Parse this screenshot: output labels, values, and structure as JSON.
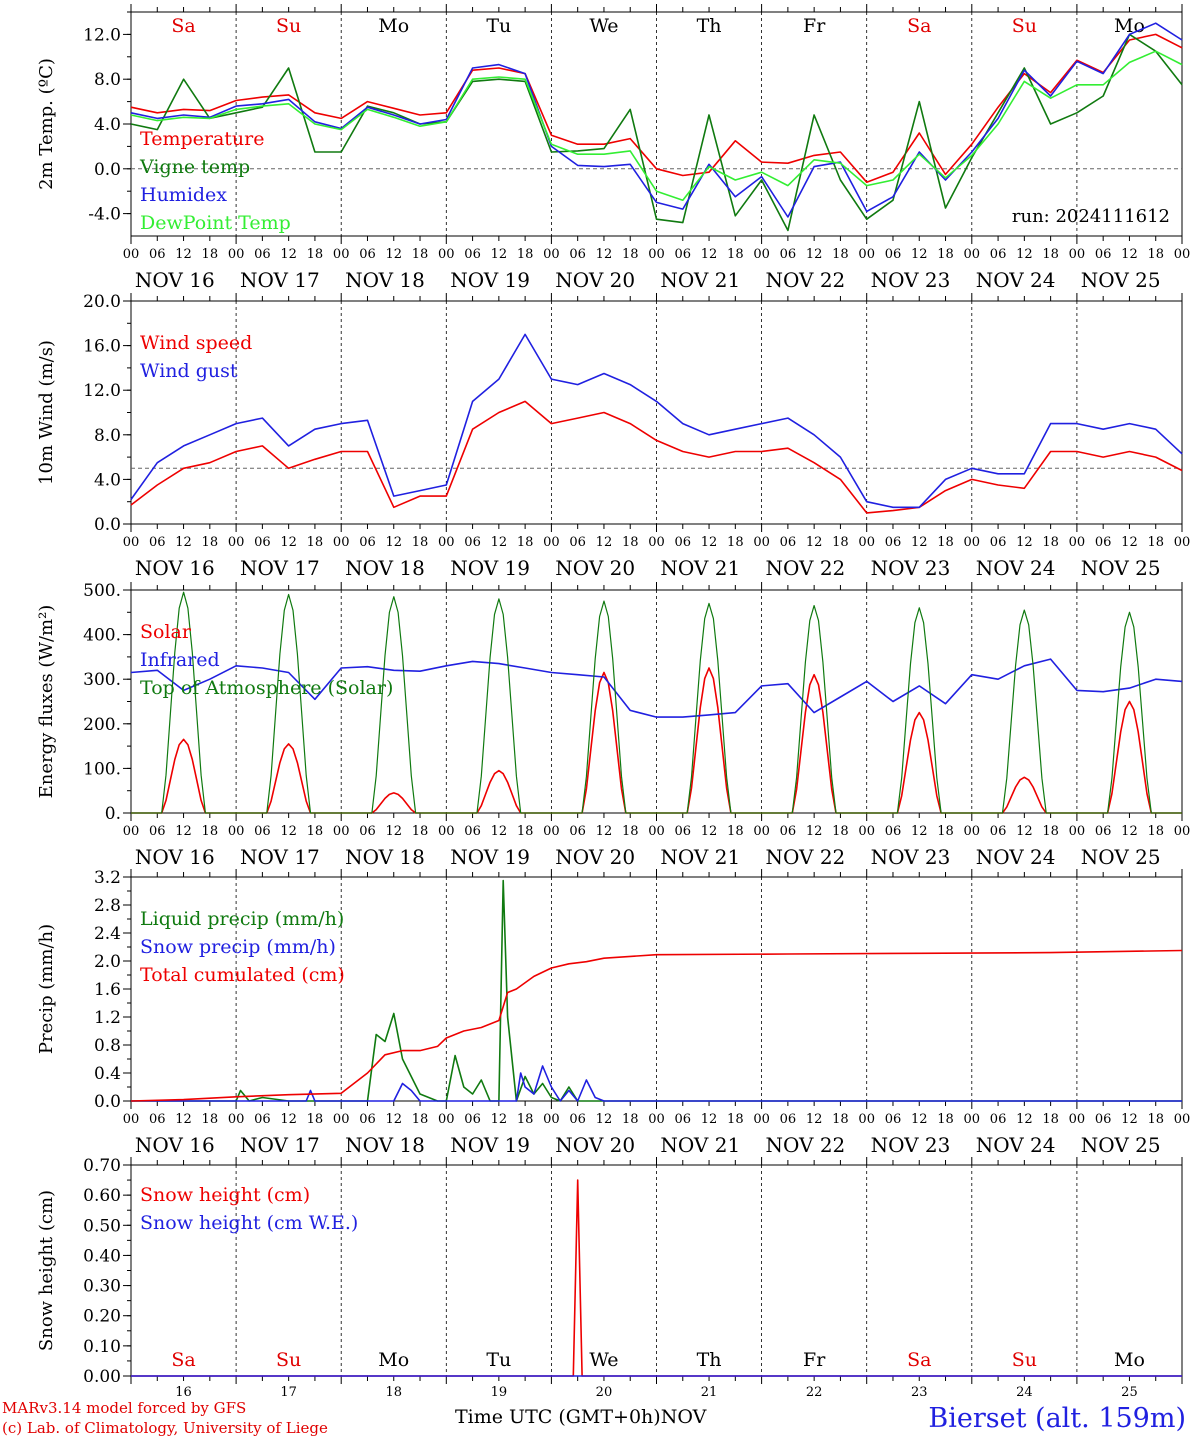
{
  "chart_data": [
    {
      "type": "line",
      "ylabel": "2m Temp. (ºC)",
      "ylim": [
        -6,
        14
      ],
      "yticks": [
        -4,
        0,
        4,
        8,
        12
      ],
      "ytick_labels": [
        "-4.0",
        "0.0",
        "4.0",
        "8.0",
        "12.0"
      ],
      "ref_line": 0,
      "annotation": "run: 2024111612",
      "x_unit": "hours from NOV 16 00 UTC",
      "weekday_labels": [
        "Sa",
        "Su",
        "Mo",
        "Tu",
        "We",
        "Th",
        "Fr",
        "Sa",
        "Su",
        "Mo"
      ],
      "weekday_colors": [
        "#e00000",
        "#e00000",
        "#000000",
        "#000000",
        "#000000",
        "#000000",
        "#000000",
        "#e00000",
        "#e00000",
        "#000000"
      ],
      "series": [
        {
          "name": "Temperature",
          "color": "#ee0000",
          "x": [
            0,
            6,
            12,
            18,
            24,
            30,
            36,
            42,
            48,
            54,
            60,
            66,
            72,
            78,
            84,
            90,
            96,
            102,
            108,
            114,
            120,
            126,
            132,
            138,
            144,
            150,
            156,
            162,
            168,
            174,
            180,
            186,
            192,
            198,
            204,
            210,
            216,
            222,
            228,
            234,
            240
          ],
          "values": [
            5.5,
            5,
            5.3,
            5.2,
            6.1,
            6.4,
            6.6,
            5,
            4.5,
            6,
            5.4,
            4.8,
            5,
            8.8,
            9,
            8.5,
            3,
            2.2,
            2.2,
            2.7,
            0,
            -0.6,
            -0.3,
            2.5,
            0.6,
            0.5,
            1.2,
            1.5,
            -1.2,
            -0.3,
            3.2,
            -0.5,
            2.2,
            5.5,
            8.5,
            6.8,
            9.7,
            8.6,
            11.5,
            12,
            10.8
          ]
        },
        {
          "name": "Vigne temp",
          "color": "#107a10",
          "x": [
            0,
            6,
            12,
            18,
            24,
            30,
            36,
            42,
            48,
            54,
            60,
            66,
            72,
            78,
            84,
            90,
            96,
            102,
            108,
            114,
            120,
            126,
            132,
            138,
            144,
            150,
            156,
            162,
            168,
            174,
            180,
            186,
            192,
            198,
            204,
            210,
            216,
            222,
            228,
            234,
            240
          ],
          "values": [
            4,
            3.5,
            8,
            4.5,
            5,
            5.5,
            9,
            1.5,
            1.5,
            5.6,
            5,
            4,
            4.2,
            7.8,
            8,
            7.8,
            1.5,
            1.6,
            1.8,
            5.3,
            -4.5,
            -4.8,
            4.8,
            -4.2,
            -1,
            -5.5,
            4.8,
            -1,
            -4.5,
            -2.8,
            6,
            -3.5,
            1,
            5,
            9,
            4,
            5,
            6.5,
            12,
            10.5,
            7.5
          ]
        },
        {
          "name": "Humidex",
          "color": "#2020e0",
          "x": [
            0,
            6,
            12,
            18,
            24,
            30,
            36,
            42,
            48,
            54,
            60,
            66,
            72,
            78,
            84,
            90,
            96,
            102,
            108,
            114,
            120,
            126,
            132,
            138,
            144,
            150,
            156,
            162,
            168,
            174,
            180,
            186,
            192,
            198,
            204,
            210,
            216,
            222,
            228,
            234,
            240
          ],
          "values": [
            5,
            4.5,
            4.8,
            4.6,
            5.6,
            5.8,
            6.2,
            4.2,
            3.6,
            5.5,
            4.8,
            4,
            4.4,
            9,
            9.3,
            8.5,
            2,
            0.3,
            0.2,
            0.4,
            -3,
            -3.6,
            0.4,
            -2.5,
            -0.7,
            -4.3,
            0.2,
            0.6,
            -3.8,
            -2.5,
            1.5,
            -1,
            1.5,
            4.5,
            8.8,
            6.5,
            9.6,
            8.5,
            12,
            13,
            11.5
          ]
        },
        {
          "name": "DewPoint Temp",
          "color": "#33ee33",
          "x": [
            0,
            6,
            12,
            18,
            24,
            30,
            36,
            42,
            48,
            54,
            60,
            66,
            72,
            78,
            84,
            90,
            96,
            102,
            108,
            114,
            120,
            126,
            132,
            138,
            144,
            150,
            156,
            162,
            168,
            174,
            180,
            186,
            192,
            198,
            204,
            210,
            216,
            222,
            228,
            234,
            240
          ],
          "values": [
            4.8,
            4.3,
            4.6,
            4.5,
            5.3,
            5.6,
            5.8,
            4,
            3.5,
            5.3,
            4.6,
            3.8,
            4.2,
            8,
            8.2,
            8,
            2.2,
            1.3,
            1.3,
            1.6,
            -2,
            -2.8,
            0.2,
            -1,
            -0.3,
            -1.5,
            0.8,
            0.5,
            -1.5,
            -1,
            1.3,
            -0.8,
            1.2,
            4,
            7.8,
            6.3,
            7.5,
            7.5,
            9.5,
            10.5,
            9.3
          ]
        }
      ]
    },
    {
      "type": "line",
      "ylabel": "10m Wind (m/s)",
      "ylim": [
        0,
        20
      ],
      "yticks": [
        0,
        4,
        8,
        12,
        16,
        20
      ],
      "ytick_labels": [
        "0.0",
        "4.0",
        "8.0",
        "12.0",
        "16.0",
        "20.0"
      ],
      "ref_line": 5,
      "series": [
        {
          "name": "Wind speed",
          "color": "#ee0000",
          "x": [
            0,
            6,
            12,
            18,
            24,
            30,
            36,
            42,
            48,
            54,
            60,
            66,
            72,
            78,
            84,
            90,
            96,
            102,
            108,
            114,
            120,
            126,
            132,
            138,
            144,
            150,
            156,
            162,
            168,
            174,
            180,
            186,
            192,
            198,
            204,
            210,
            216,
            222,
            228,
            234,
            240
          ],
          "values": [
            1.7,
            3.5,
            5,
            5.5,
            6.5,
            7,
            5,
            5.8,
            6.5,
            6.5,
            1.5,
            2.5,
            2.5,
            8.5,
            10,
            11,
            9,
            9.5,
            10,
            9,
            7.5,
            6.5,
            6,
            6.5,
            6.5,
            6.8,
            5.5,
            4,
            1,
            1.2,
            1.5,
            3,
            4,
            3.5,
            3.2,
            6.5,
            6.5,
            6,
            6.5,
            6,
            4.8
          ]
        },
        {
          "name": "Wind gust",
          "color": "#2020e0",
          "x": [
            0,
            6,
            12,
            18,
            24,
            30,
            36,
            42,
            48,
            54,
            60,
            66,
            72,
            78,
            84,
            90,
            96,
            102,
            108,
            114,
            120,
            126,
            132,
            138,
            144,
            150,
            156,
            162,
            168,
            174,
            180,
            186,
            192,
            198,
            204,
            210,
            216,
            222,
            228,
            234,
            240
          ],
          "values": [
            2.2,
            5.5,
            7,
            8,
            9,
            9.5,
            7,
            8.5,
            9,
            9.3,
            2.5,
            3,
            3.5,
            11,
            13,
            17,
            13,
            12.5,
            13.5,
            12.5,
            11,
            9,
            8,
            8.5,
            9,
            9.5,
            8,
            6,
            2,
            1.5,
            1.5,
            4,
            5,
            4.5,
            4.5,
            9,
            9,
            8.5,
            9,
            8.5,
            6.3
          ]
        }
      ]
    },
    {
      "type": "line",
      "ylabel": "Energy fluxes (W/m²)",
      "ylim": [
        0,
        500
      ],
      "yticks": [
        0,
        100,
        200,
        300,
        400,
        500
      ],
      "ytick_labels": [
        "0.",
        "100.",
        "200.",
        "300.",
        "400.",
        "500."
      ],
      "series": [
        {
          "name": "Solar",
          "color": "#ee0000",
          "peaks": [
            165,
            155,
            45,
            95,
            315,
            325,
            310,
            225,
            80,
            250
          ]
        },
        {
          "name": "Infrared",
          "color": "#2020e0",
          "x": [
            0,
            6,
            12,
            18,
            24,
            30,
            36,
            42,
            48,
            54,
            60,
            66,
            72,
            78,
            84,
            90,
            96,
            102,
            108,
            114,
            120,
            126,
            132,
            138,
            144,
            150,
            156,
            162,
            168,
            174,
            180,
            186,
            192,
            198,
            204,
            210,
            216,
            222,
            228,
            234,
            240
          ],
          "values": [
            315,
            320,
            275,
            300,
            330,
            325,
            315,
            255,
            325,
            328,
            320,
            318,
            330,
            340,
            335,
            325,
            315,
            310,
            305,
            230,
            215,
            215,
            220,
            225,
            285,
            290,
            225,
            260,
            295,
            250,
            285,
            245,
            310,
            300,
            330,
            345,
            275,
            272,
            280,
            300,
            295
          ]
        },
        {
          "name": "Top of Atmosphere (Solar)",
          "color": "#107a10",
          "peaks": [
            495,
            490,
            485,
            480,
            475,
            470,
            465,
            460,
            455,
            450
          ]
        }
      ]
    },
    {
      "type": "line",
      "ylabel": "Precip (mm/h)",
      "ylim": [
        0,
        3.2
      ],
      "yticks": [
        0,
        0.4,
        0.8,
        1.2,
        1.6,
        2.0,
        2.4,
        2.8,
        3.2
      ],
      "ytick_labels": [
        "0.0",
        "0.4",
        "0.8",
        "1.2",
        "1.6",
        "2.0",
        "2.4",
        "2.8",
        "3.2"
      ],
      "series": [
        {
          "name": "Liquid precip (mm/h)",
          "color": "#107a10",
          "x": [
            0,
            24,
            25,
            27,
            30,
            36,
            48,
            54,
            56,
            58,
            60,
            62,
            66,
            70,
            72,
            74,
            76,
            78,
            80,
            82,
            84,
            85,
            86,
            88,
            90,
            92,
            94,
            96,
            98,
            100,
            102,
            104,
            240
          ],
          "values": [
            0,
            0,
            0.15,
            0,
            0.05,
            0,
            0,
            0,
            0.95,
            0.85,
            1.25,
            0.6,
            0.1,
            0,
            0,
            0.65,
            0.2,
            0.1,
            0.3,
            0,
            0,
            3.15,
            1.2,
            0,
            0.35,
            0.1,
            0.25,
            0.05,
            0,
            0.2,
            0,
            0,
            0
          ]
        },
        {
          "name": "Snow precip (mm/h)",
          "color": "#2020e0",
          "x": [
            0,
            40,
            41,
            42,
            48,
            60,
            62,
            64,
            66,
            70,
            84,
            88,
            89,
            90,
            92,
            94,
            96,
            98,
            100,
            102,
            104,
            106,
            108,
            240
          ],
          "values": [
            0,
            0,
            0.15,
            0,
            0,
            0,
            0.25,
            0.15,
            0,
            0,
            0,
            0,
            0.4,
            0.2,
            0.1,
            0.5,
            0.2,
            0,
            0.15,
            0,
            0.3,
            0.05,
            0,
            0
          ]
        },
        {
          "name": "Total cumulated (cm)",
          "color": "#ee0000",
          "x": [
            0,
            12,
            24,
            36,
            48,
            54,
            58,
            62,
            66,
            70,
            72,
            76,
            80,
            84,
            86,
            88,
            92,
            96,
            100,
            104,
            108,
            120,
            150,
            180,
            210,
            240
          ],
          "values": [
            0,
            0.02,
            0.06,
            0.09,
            0.11,
            0.4,
            0.66,
            0.72,
            0.72,
            0.78,
            0.9,
            1.0,
            1.05,
            1.15,
            1.55,
            1.6,
            1.78,
            1.9,
            1.96,
            1.99,
            2.04,
            2.09,
            2.1,
            2.11,
            2.12,
            2.15
          ]
        }
      ]
    },
    {
      "type": "line",
      "ylabel": "Snow height (cm)",
      "xlabel": "Time UTC (GMT+0h)",
      "x_extra_label": "NOV",
      "ylim": [
        0,
        0.7
      ],
      "yticks": [
        0,
        0.1,
        0.2,
        0.3,
        0.4,
        0.5,
        0.6,
        0.7
      ],
      "ytick_labels": [
        "0.00",
        "0.10",
        "0.20",
        "0.30",
        "0.40",
        "0.50",
        "0.60",
        "0.70"
      ],
      "day_numbers": [
        "16",
        "17",
        "18",
        "19",
        "20",
        "21",
        "22",
        "23",
        "24",
        "25"
      ],
      "series": [
        {
          "name": "Snow height (cm)",
          "color": "#ee0000",
          "x": [
            0,
            99,
            101,
            102,
            103,
            105,
            240
          ],
          "values": [
            0,
            0,
            0,
            0.65,
            0,
            0,
            0
          ]
        },
        {
          "name": "Snow height (cm W.E.)",
          "color": "#2020e0",
          "x": [
            0,
            240
          ],
          "values": [
            0,
            0
          ]
        }
      ]
    }
  ],
  "x_axis": {
    "hour_labels": [
      "00",
      "06",
      "12",
      "18"
    ],
    "end_label": "00",
    "day_labels": [
      "NOV 16",
      "NOV 17",
      "NOV 18",
      "NOV 19",
      "NOV 20",
      "NOV 21",
      "NOV 22",
      "NOV 23",
      "NOV 24",
      "NOV 25"
    ]
  },
  "footer": {
    "model_line": "MARv3.14 model forced by GFS",
    "credit_line": "(c) Lab. of Climatology, University of Liege",
    "station": "Bierset (alt. 159m)"
  }
}
